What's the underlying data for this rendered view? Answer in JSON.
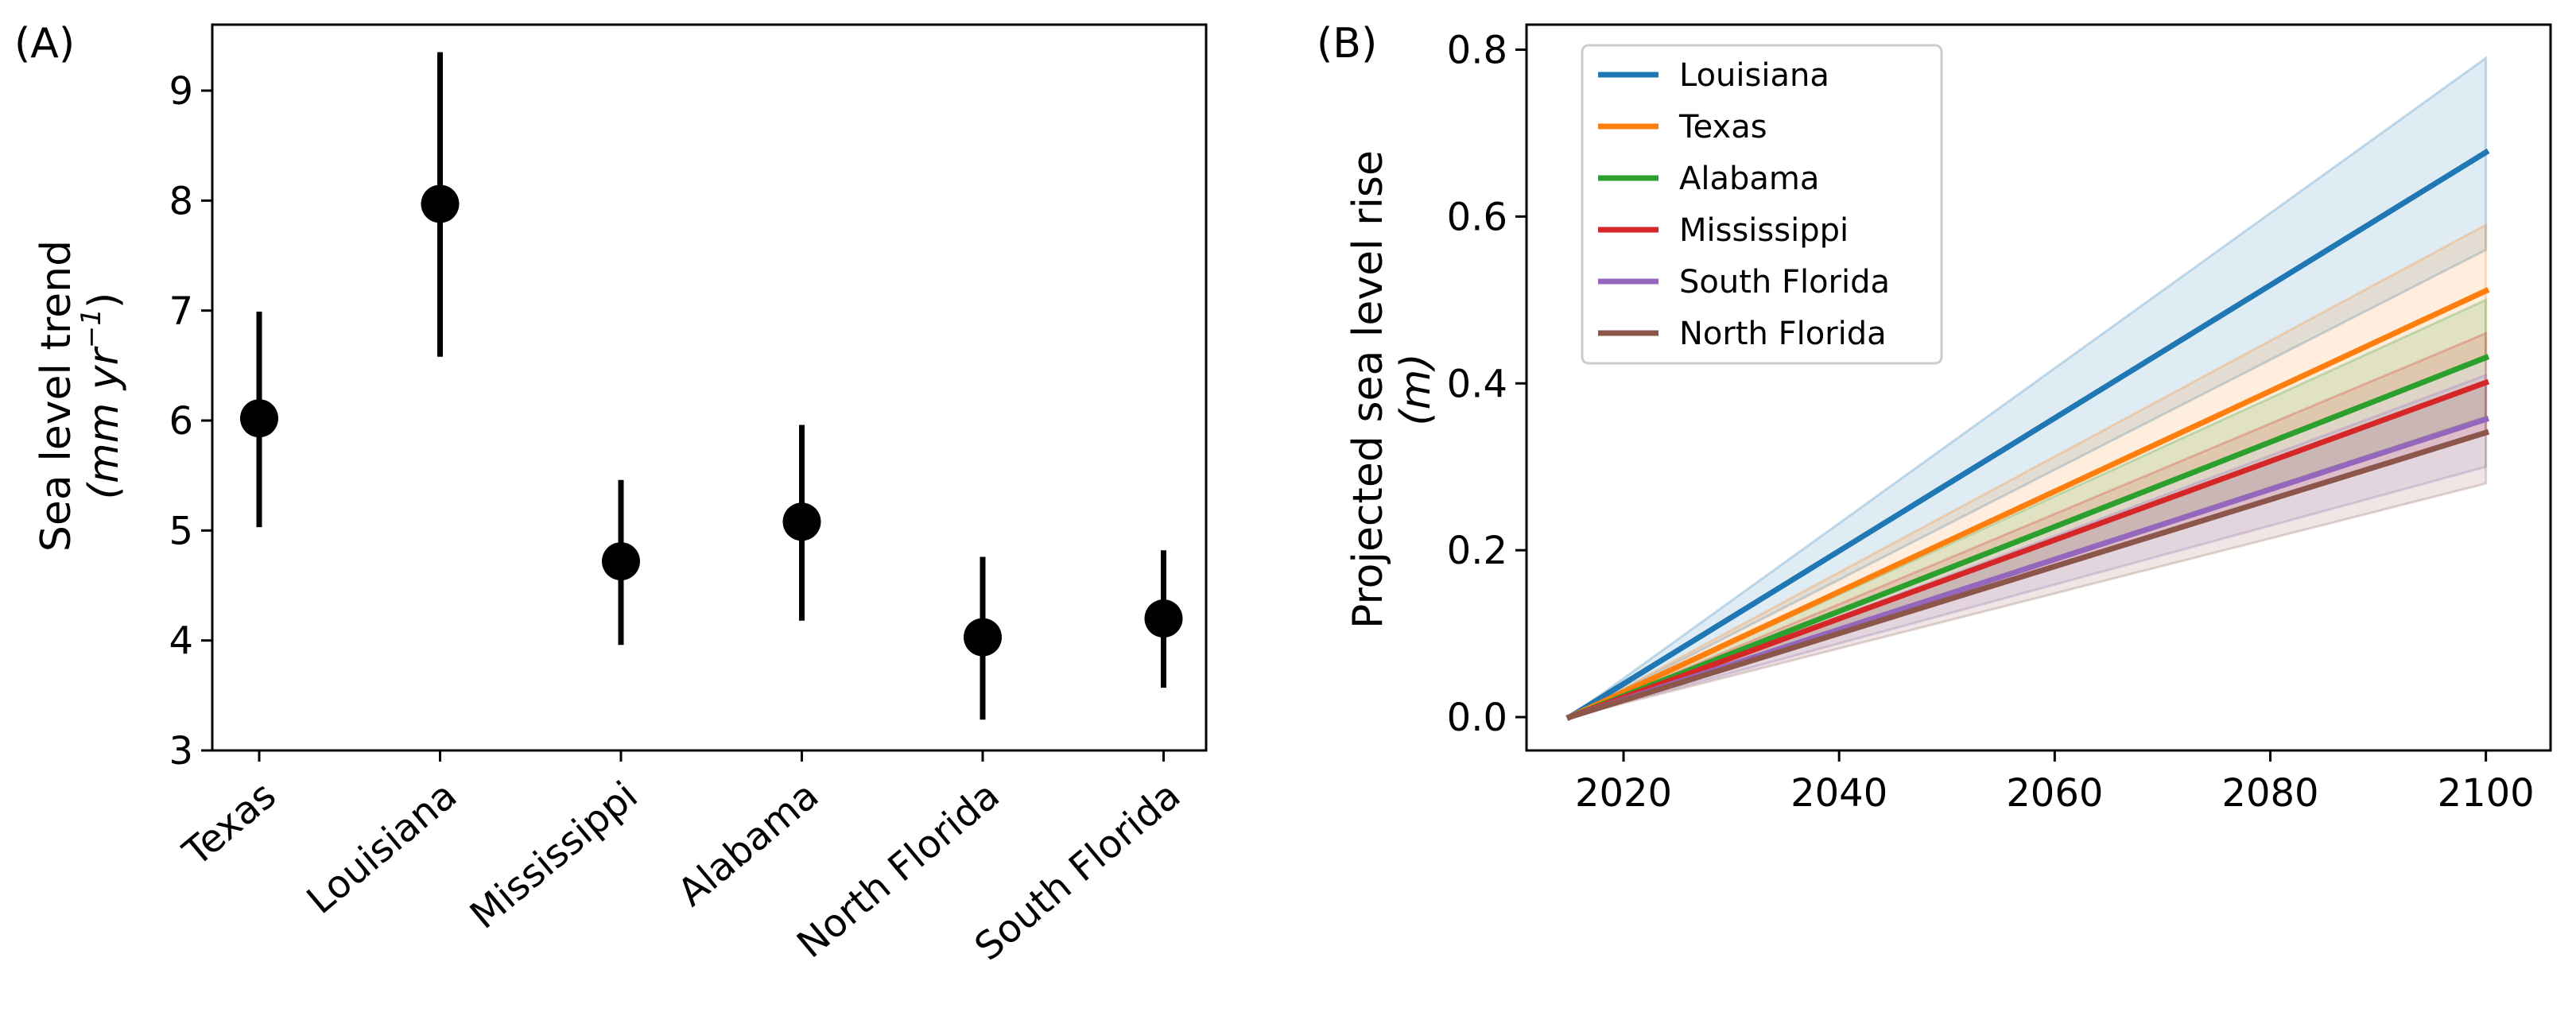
{
  "chart_data": [
    {
      "type": "scatter",
      "panel_label": "(A)",
      "categories": [
        "Texas",
        "Louisiana",
        "Mississippi",
        "Alabama",
        "North Florida",
        "South Florida"
      ],
      "values": [
        6.02,
        7.97,
        4.72,
        5.08,
        4.03,
        4.2
      ],
      "error_low": [
        5.03,
        6.58,
        3.96,
        4.18,
        3.28,
        3.57
      ],
      "error_high": [
        6.99,
        9.35,
        5.46,
        5.96,
        4.76,
        4.82
      ],
      "ylim": [
        3,
        9.6
      ],
      "y_ticks": [
        "3",
        "4",
        "5",
        "6",
        "7",
        "8",
        "9"
      ],
      "ylabel_line1": "Sea level trend",
      "ylabel_line2": "(mm yr",
      "ylabel_sup": "−1",
      "ylabel_close": ")",
      "xlabel": "",
      "color": "#000000"
    },
    {
      "type": "line",
      "panel_label": "(B)",
      "ylabel_line1": "Projected sea level rise",
      "ylabel_line2": "(m)",
      "x_ticks": [
        "2020",
        "2040",
        "2060",
        "2080",
        "2100"
      ],
      "y_ticks": [
        "0.0",
        "0.2",
        "0.4",
        "0.6",
        "0.8"
      ],
      "xlim": [
        2011,
        2106
      ],
      "ylim": [
        -0.04,
        0.83
      ],
      "legend_position": "top-left",
      "series": [
        {
          "name": "Louisiana",
          "color": "#1f77b4",
          "x": [
            2015,
            2100
          ],
          "y": [
            0,
            0.677
          ],
          "lower": [
            0,
            0.56
          ],
          "upper": [
            0,
            0.79
          ]
        },
        {
          "name": "Texas",
          "color": "#ff7f0e",
          "x": [
            2015,
            2100
          ],
          "y": [
            0,
            0.511
          ],
          "lower": [
            0,
            0.43
          ],
          "upper": [
            0,
            0.59
          ]
        },
        {
          "name": "Alabama",
          "color": "#2ca02c",
          "x": [
            2015,
            2100
          ],
          "y": [
            0,
            0.431
          ],
          "lower": [
            0,
            0.36
          ],
          "upper": [
            0,
            0.5
          ]
        },
        {
          "name": "Mississippi",
          "color": "#d62728",
          "x": [
            2015,
            2100
          ],
          "y": [
            0,
            0.401
          ],
          "lower": [
            0,
            0.34
          ],
          "upper": [
            0,
            0.46
          ]
        },
        {
          "name": "South Florida",
          "color": "#9467bd",
          "x": [
            2015,
            2100
          ],
          "y": [
            0,
            0.357
          ],
          "lower": [
            0,
            0.3
          ],
          "upper": [
            0,
            0.41
          ]
        },
        {
          "name": "North Florida",
          "color": "#8c564b",
          "x": [
            2015,
            2100
          ],
          "y": [
            0,
            0.341
          ],
          "lower": [
            0,
            0.28
          ],
          "upper": [
            0,
            0.4
          ]
        }
      ]
    }
  ]
}
